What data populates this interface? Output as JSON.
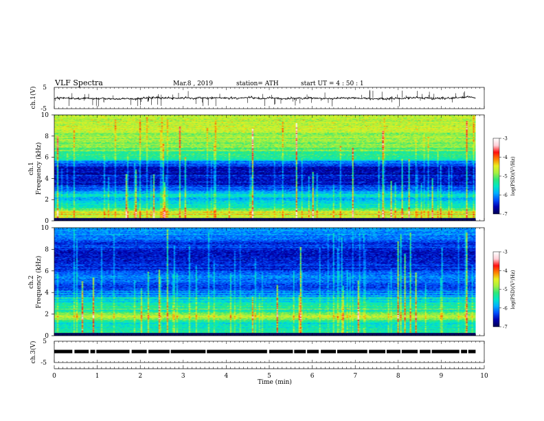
{
  "header": {
    "title": "VLF  Spectra",
    "date": "Mar.8  , 2019",
    "station": "station= ATH",
    "start": "start  UT  =   4  : 50 : 1"
  },
  "chart_data": [
    {
      "type": "line",
      "panel": "ch1-waveform",
      "ylabel": "ch.1(V)",
      "xlim": [
        0,
        10
      ],
      "ylim": [
        -5,
        5
      ],
      "yticks": [
        {
          "v": 5,
          "label": "5"
        },
        {
          "v": -5,
          "label": "-5"
        }
      ],
      "x_end": 9.8,
      "baseline": 0
    },
    {
      "type": "heatmap",
      "panel": "ch1-spectrogram",
      "ylabel": "ch.1\nFrequency  (kHz)",
      "xlim": [
        0,
        10
      ],
      "ylim": [
        0,
        10
      ],
      "x_end": 9.8,
      "yticks": [
        "0",
        "2",
        "4",
        "6",
        "8",
        "10"
      ],
      "profile_log_psd": [
        [
          0.0,
          -5.0
        ],
        [
          0.3,
          -4.7
        ],
        [
          0.8,
          -4.6
        ],
        [
          1.2,
          -5.4
        ],
        [
          1.6,
          -5.6
        ],
        [
          2.0,
          -6.0
        ],
        [
          2.4,
          -5.5
        ],
        [
          2.8,
          -6.1
        ],
        [
          3.2,
          -6.4
        ],
        [
          3.6,
          -6.6
        ],
        [
          4.0,
          -6.5
        ],
        [
          4.5,
          -6.7
        ],
        [
          5.0,
          -6.6
        ],
        [
          5.6,
          -6.1
        ],
        [
          5.8,
          -5.4
        ],
        [
          6.5,
          -5.2
        ],
        [
          7.0,
          -5.0
        ],
        [
          8.0,
          -4.8
        ],
        [
          9.0,
          -4.7
        ],
        [
          10.0,
          -4.7
        ]
      ]
    },
    {
      "type": "heatmap",
      "panel": "ch2-spectrogram",
      "ylabel": "ch.2\nFrequency  (kHz)",
      "xlim": [
        0,
        10
      ],
      "ylim": [
        0,
        10
      ],
      "x_end": 9.8,
      "yticks": [
        "0",
        "2",
        "4",
        "6",
        "8",
        "10"
      ],
      "profile_log_psd": [
        [
          0.0,
          -5.2
        ],
        [
          0.4,
          -5.4
        ],
        [
          0.8,
          -5.5
        ],
        [
          1.2,
          -5.6
        ],
        [
          1.6,
          -4.7
        ],
        [
          1.9,
          -4.8
        ],
        [
          2.3,
          -5.5
        ],
        [
          2.7,
          -5.3
        ],
        [
          3.0,
          -5.6
        ],
        [
          3.5,
          -5.8
        ],
        [
          4.0,
          -6.1
        ],
        [
          4.5,
          -6.4
        ],
        [
          5.0,
          -6.2
        ],
        [
          5.5,
          -6.1
        ],
        [
          6.0,
          -6.3
        ],
        [
          7.0,
          -6.6
        ],
        [
          8.0,
          -6.5
        ],
        [
          9.0,
          -6.2
        ],
        [
          10.0,
          -5.9
        ]
      ]
    },
    {
      "type": "line",
      "panel": "ch3-signal",
      "ylabel": "ch.3(V)",
      "xlim": [
        0,
        10
      ],
      "ylim": [
        -5,
        5
      ],
      "yticks": [
        {
          "v": 5,
          "label": "5"
        },
        {
          "v": -5,
          "label": "-5"
        }
      ],
      "level": 0,
      "x_end": 9.8,
      "gaps": [
        [
          0.42,
          0.47
        ],
        [
          0.8,
          0.84
        ],
        [
          0.95,
          0.98
        ],
        [
          1.75,
          1.8
        ],
        [
          2.15,
          2.19
        ],
        [
          2.68,
          2.71
        ],
        [
          3.52,
          3.55
        ],
        [
          4.95,
          5.0
        ],
        [
          5.55,
          5.58
        ],
        [
          5.85,
          5.88
        ],
        [
          6.15,
          6.2
        ],
        [
          6.55,
          6.58
        ],
        [
          7.28,
          7.32
        ],
        [
          7.7,
          7.73
        ],
        [
          8.05,
          8.08
        ],
        [
          8.45,
          8.5
        ],
        [
          8.75,
          8.78
        ],
        [
          9.42,
          9.46
        ],
        [
          9.6,
          9.63
        ]
      ]
    }
  ],
  "time_axis": {
    "label": "Time  (min)",
    "ticks": [
      "0",
      "1",
      "2",
      "3",
      "4",
      "5",
      "6",
      "7",
      "8",
      "9",
      "10"
    ]
  },
  "colorbars": [
    {
      "name": "colorbar-ch1",
      "label": "log(PSD)(V²/Hz)",
      "range": [
        -7,
        -3
      ],
      "ticks": [
        "-3",
        "-4",
        "-5",
        "-6",
        "-7"
      ]
    },
    {
      "name": "colorbar-ch2",
      "label": "log(PSD)(V²/Hz)",
      "range": [
        -7,
        -3
      ],
      "ticks": [
        "-3",
        "-4",
        "-5",
        "-6",
        "-7"
      ]
    }
  ],
  "colormap_stops": [
    "#000058",
    "#0000b0",
    "#0050ff",
    "#00b0ff",
    "#00e8c8",
    "#30e878",
    "#a8f040",
    "#e8f020",
    "#ff8000",
    "#ff1010",
    "#ffd0d8",
    "#ffffff"
  ]
}
